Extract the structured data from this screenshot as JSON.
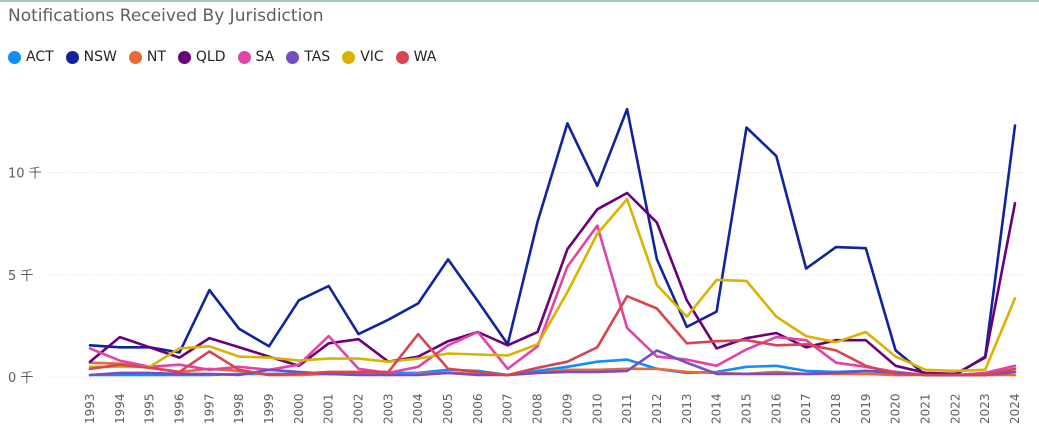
{
  "chart_data": {
    "type": "line",
    "title": "Notifications Received By Jurisdiction",
    "y_tick_labels": [
      "0 千",
      "5 千",
      "10 千"
    ],
    "y_tick_values": [
      0,
      5000,
      10000
    ],
    "ylim": [
      0,
      13500
    ],
    "grid": true,
    "legend_position": "top-left",
    "x": [
      "1993",
      "1994",
      "1995",
      "1996",
      "1997",
      "1998",
      "1999",
      "2000",
      "2001",
      "2002",
      "2003",
      "2004",
      "2005",
      "2006",
      "2007",
      "2008",
      "2009",
      "2010",
      "2011",
      "2012",
      "2013",
      "2014",
      "2015",
      "2016",
      "2017",
      "2018",
      "2019",
      "2020",
      "2021",
      "2022",
      "2023",
      "2024"
    ],
    "series": [
      {
        "name": "ACT",
        "color": "#118dff",
        "values": [
          100,
          100,
          100,
          100,
          100,
          150,
          150,
          150,
          150,
          150,
          200,
          200,
          350,
          300,
          100,
          300,
          500,
          750,
          850,
          400,
          200,
          250,
          500,
          550,
          300,
          250,
          300,
          250,
          100,
          100,
          100,
          250
        ]
      },
      {
        "name": "NSW",
        "color": "#12239e",
        "values": [
          1550,
          1450,
          1450,
          1200,
          4250,
          2350,
          1500,
          3750,
          4450,
          2100,
          2800,
          3600,
          5750,
          3700,
          1600,
          7600,
          12400,
          9350,
          13100,
          5750,
          2450,
          3200,
          12200,
          10800,
          5300,
          6350,
          6300,
          1300,
          100,
          100,
          1000,
          12300
        ]
      },
      {
        "name": "NT",
        "color": "#e66c37",
        "values": [
          700,
          650,
          450,
          250,
          400,
          300,
          100,
          100,
          150,
          150,
          100,
          150,
          200,
          150,
          100,
          200,
          350,
          350,
          400,
          400,
          250,
          200,
          150,
          250,
          150,
          150,
          150,
          100,
          100,
          100,
          100,
          100
        ]
      },
      {
        "name": "QLD",
        "color": "#6b007b",
        "values": [
          750,
          1950,
          1450,
          950,
          1900,
          1450,
          1000,
          550,
          1650,
          1850,
          750,
          1000,
          1750,
          2200,
          1550,
          2200,
          6250,
          8200,
          9000,
          7550,
          3750,
          1400,
          1900,
          2150,
          1450,
          1800,
          1800,
          550,
          200,
          150,
          950,
          8500
        ]
      },
      {
        "name": "SA",
        "color": "#e044a7",
        "values": [
          1400,
          800,
          500,
          600,
          350,
          500,
          350,
          600,
          2000,
          400,
          200,
          500,
          1550,
          2200,
          400,
          1500,
          5400,
          7400,
          2400,
          1000,
          850,
          550,
          1350,
          1950,
          1800,
          700,
          500,
          250,
          100,
          100,
          200,
          550
        ]
      },
      {
        "name": "TAS",
        "color": "#744ec2",
        "values": [
          100,
          200,
          200,
          150,
          150,
          100,
          350,
          250,
          150,
          100,
          100,
          100,
          200,
          100,
          100,
          200,
          250,
          250,
          300,
          1300,
          700,
          150,
          150,
          150,
          150,
          200,
          300,
          200,
          100,
          100,
          100,
          250
        ]
      },
      {
        "name": "VIC",
        "color": "#d9b300",
        "values": [
          500,
          500,
          500,
          1400,
          1500,
          1000,
          950,
          800,
          900,
          900,
          750,
          900,
          1150,
          1100,
          1050,
          1600,
          4150,
          7000,
          8700,
          4500,
          2950,
          4750,
          4700,
          2950,
          2000,
          1700,
          2200,
          1000,
          350,
          300,
          350,
          3850
        ]
      },
      {
        "name": "WA",
        "color": "#d64550",
        "values": [
          400,
          600,
          450,
          250,
          1250,
          350,
          100,
          150,
          250,
          250,
          250,
          2100,
          400,
          250,
          100,
          450,
          750,
          1450,
          3950,
          3350,
          1650,
          1750,
          1800,
          1550,
          1600,
          1300,
          550,
          150,
          100,
          100,
          100,
          400
        ]
      }
    ]
  }
}
